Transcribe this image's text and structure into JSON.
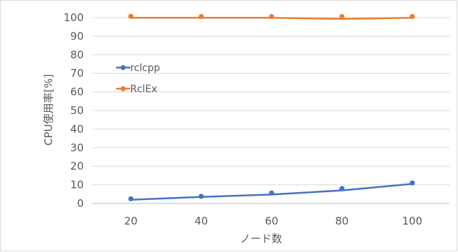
{
  "chart_data": {
    "type": "line",
    "x": [
      20,
      40,
      60,
      80,
      100
    ],
    "xlabel": "ノード数",
    "ylabel": "CPU使用率[%]",
    "ylim": [
      0,
      100
    ],
    "yticks": [
      0,
      10,
      20,
      30,
      40,
      50,
      60,
      70,
      80,
      90,
      100
    ],
    "grid": true,
    "legend_position": "left",
    "series": [
      {
        "name": "rclcpp",
        "color": "#4472c4",
        "points": [
          2.5,
          3.8,
          5.6,
          8.0,
          11.0
        ],
        "line": [
          2.0,
          3.5,
          4.8,
          7.0,
          10.5
        ]
      },
      {
        "name": "RclEx",
        "color": "#ed7d31",
        "points": [
          100.7,
          100.6,
          100.6,
          100.6,
          100.6
        ],
        "line": [
          99.9,
          99.9,
          99.9,
          99.3,
          99.9
        ]
      }
    ]
  }
}
